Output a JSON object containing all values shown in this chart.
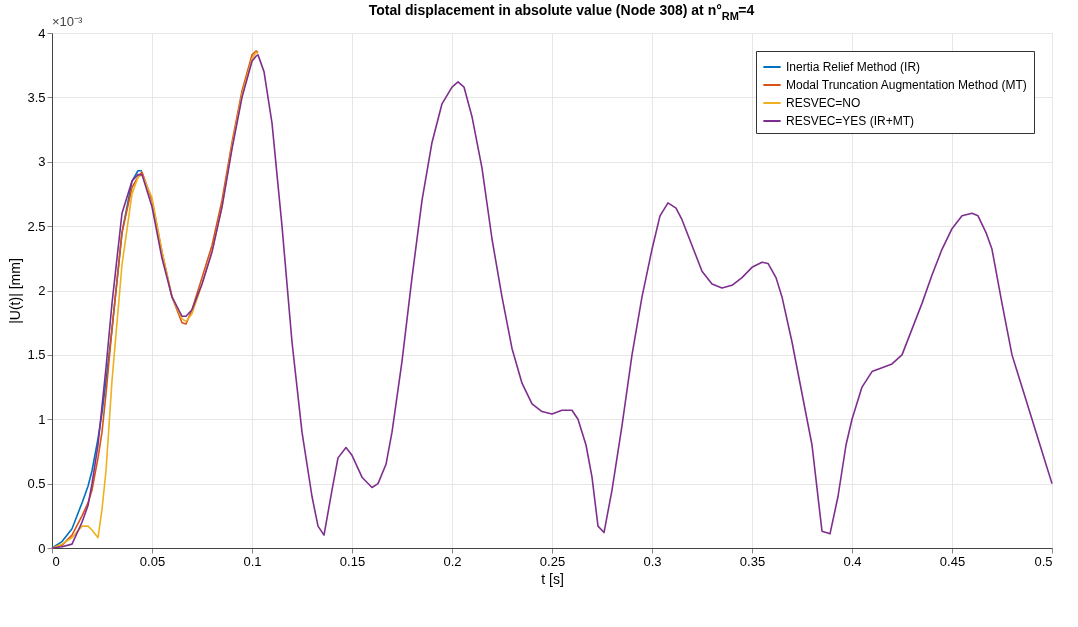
{
  "chart_data": {
    "type": "line",
    "title": "Total displacement in absolute value (Node 308) at n°$_{RM}$=4",
    "xlabel": "t [s]",
    "ylabel": "|U(t)| [mm]",
    "annotations": [
      "×10⁻³"
    ],
    "x": [
      0,
      0.005,
      0.01,
      0.015,
      0.018,
      0.02,
      0.023,
      0.025,
      0.027,
      0.03,
      0.035,
      0.04,
      0.043,
      0.045,
      0.05,
      0.055,
      0.06,
      0.065,
      0.067,
      0.07,
      0.075,
      0.08,
      0.085,
      0.09,
      0.095,
      0.1,
      0.102,
      0.103,
      0.106,
      0.11,
      0.115,
      0.12,
      0.125,
      0.13,
      0.133,
      0.136,
      0.14,
      0.143,
      0.147,
      0.15,
      0.155,
      0.16,
      0.163,
      0.167,
      0.17,
      0.175,
      0.18,
      0.185,
      0.19,
      0.195,
      0.2,
      0.203,
      0.206,
      0.21,
      0.215,
      0.22,
      0.225,
      0.23,
      0.235,
      0.24,
      0.245,
      0.25,
      0.255,
      0.26,
      0.263,
      0.267,
      0.27,
      0.273,
      0.276,
      0.28,
      0.285,
      0.29,
      0.295,
      0.3,
      0.304,
      0.308,
      0.312,
      0.315,
      0.32,
      0.325,
      0.33,
      0.335,
      0.34,
      0.345,
      0.35,
      0.355,
      0.358,
      0.362,
      0.365,
      0.37,
      0.375,
      0.38,
      0.385,
      0.389,
      0.393,
      0.397,
      0.4,
      0.405,
      0.41,
      0.415,
      0.42,
      0.425,
      0.43,
      0.435,
      0.44,
      0.445,
      0.45,
      0.455,
      0.46,
      0.463,
      0.467,
      0.47,
      0.475,
      0.48,
      0.485,
      0.49,
      0.495,
      0.5
    ],
    "series": [
      {
        "name": "Inertia Relief Method (IR)",
        "color": "#0072bd",
        "x": [
          0,
          0.005,
          0.01,
          0.015,
          0.018,
          0.02,
          0.023,
          0.025,
          0.027,
          0.03,
          0.035,
          0.04,
          0.043,
          0.045
        ],
        "values": [
          0,
          0.05,
          0.15,
          0.35,
          0.48,
          0.6,
          0.85,
          1.05,
          1.3,
          1.7,
          2.45,
          2.85,
          2.93,
          2.93
        ]
      },
      {
        "name": "Modal Truncation Augmentation Method (MT)",
        "color": "#d95319",
        "x": [
          0,
          0.005,
          0.01,
          0.015,
          0.018,
          0.02,
          0.023,
          0.025,
          0.027,
          0.03,
          0.035,
          0.04,
          0.043,
          0.045,
          0.05,
          0.055,
          0.06,
          0.065,
          0.067,
          0.07,
          0.075,
          0.08,
          0.085,
          0.09,
          0.095,
          0.1,
          0.102,
          0.103
        ],
        "values": [
          0,
          0.02,
          0.1,
          0.25,
          0.35,
          0.45,
          0.7,
          0.9,
          1.2,
          1.7,
          2.45,
          2.8,
          2.88,
          2.92,
          2.7,
          2.3,
          1.95,
          1.75,
          1.74,
          1.85,
          2.1,
          2.35,
          2.7,
          3.15,
          3.55,
          3.83,
          3.86,
          3.85
        ]
      },
      {
        "name": "RESVEC=NO",
        "color": "#edb120",
        "x": [
          0,
          0.005,
          0.01,
          0.015,
          0.018,
          0.02,
          0.023,
          0.025,
          0.027,
          0.03,
          0.035,
          0.04,
          0.043,
          0.045,
          0.05,
          0.055,
          0.06,
          0.065,
          0.067,
          0.07,
          0.075,
          0.08,
          0.085,
          0.09,
          0.095,
          0.1,
          0.102,
          0.103
        ],
        "values": [
          0,
          0.03,
          0.08,
          0.17,
          0.17,
          0.14,
          0.08,
          0.3,
          0.6,
          1.3,
          2.2,
          2.75,
          2.88,
          2.9,
          2.72,
          2.3,
          1.95,
          1.78,
          1.76,
          1.82,
          2.05,
          2.3,
          2.65,
          3.12,
          3.52,
          3.8,
          3.85,
          3.84
        ]
      },
      {
        "name": "RESVEC=YES (IR+MT)",
        "color": "#7e2f8e",
        "values": [
          0,
          0.01,
          0.03,
          0.2,
          0.33,
          0.5,
          0.8,
          1.1,
          1.4,
          1.9,
          2.6,
          2.85,
          2.9,
          2.9,
          2.65,
          2.25,
          1.95,
          1.8,
          1.8,
          1.85,
          2.05,
          2.3,
          2.65,
          3.1,
          3.5,
          3.78,
          3.82,
          3.83,
          3.7,
          3.3,
          2.5,
          1.6,
          0.9,
          0.4,
          0.17,
          0.1,
          0.45,
          0.7,
          0.78,
          0.72,
          0.55,
          0.47,
          0.5,
          0.65,
          0.9,
          1.45,
          2.1,
          2.7,
          3.15,
          3.45,
          3.58,
          3.62,
          3.58,
          3.35,
          2.95,
          2.4,
          1.95,
          1.55,
          1.28,
          1.12,
          1.06,
          1.04,
          1.07,
          1.07,
          1.0,
          0.8,
          0.55,
          0.17,
          0.12,
          0.45,
          0.95,
          1.5,
          1.95,
          2.32,
          2.58,
          2.68,
          2.64,
          2.55,
          2.35,
          2.15,
          2.05,
          2.02,
          2.04,
          2.1,
          2.18,
          2.22,
          2.21,
          2.1,
          1.95,
          1.6,
          1.2,
          0.8,
          0.13,
          0.11,
          0.4,
          0.8,
          1.0,
          1.25,
          1.37,
          1.4,
          1.43,
          1.5,
          1.7,
          1.9,
          2.12,
          2.32,
          2.48,
          2.58,
          2.6,
          2.58,
          2.45,
          2.32,
          1.9,
          1.5,
          1.25,
          1.0,
          0.75,
          0.5
        ]
      }
    ],
    "xlim": [
      0,
      0.5
    ],
    "xticks": [
      0,
      0.05,
      0.1,
      0.15,
      0.2,
      0.25,
      0.3,
      0.35,
      0.4,
      0.45,
      0.5
    ],
    "ylim": [
      0,
      4
    ],
    "yticks": [
      0,
      0.5,
      1,
      1.5,
      2,
      2.5,
      3,
      3.5,
      4
    ],
    "grid": true,
    "legend": "top right",
    "line_style": "solid",
    "marker": "none"
  }
}
